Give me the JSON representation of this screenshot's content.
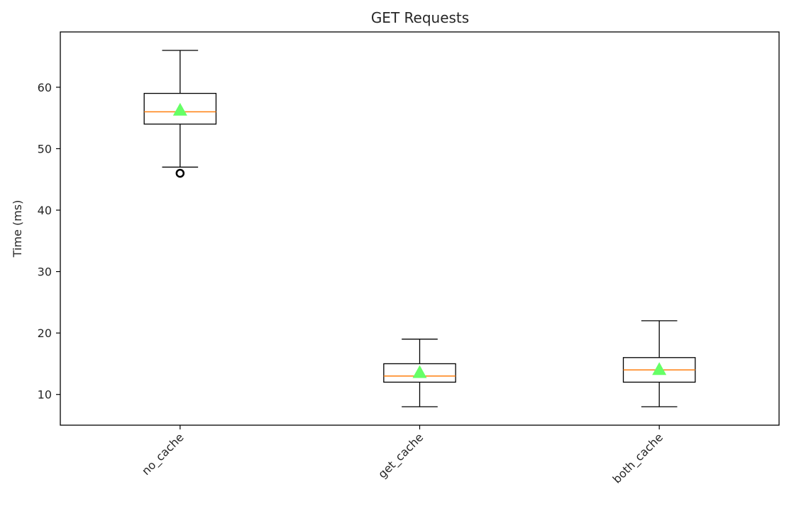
{
  "chart_data": {
    "type": "box",
    "title": "GET Requests",
    "xlabel": "",
    "ylabel": "Time (ms)",
    "ylim": [
      5,
      69
    ],
    "yticks": [
      10,
      20,
      30,
      40,
      50,
      60
    ],
    "categories": [
      "no_cache",
      "get_cache",
      "both_cache"
    ],
    "boxes": [
      {
        "category": "no_cache",
        "whisker_low": 47,
        "q1": 54,
        "median": 56,
        "q3": 59,
        "whisker_high": 66,
        "mean": 56.3,
        "outliers": [
          46
        ]
      },
      {
        "category": "get_cache",
        "whisker_low": 8,
        "q1": 12,
        "median": 13,
        "q3": 15,
        "whisker_high": 19,
        "mean": 13.6,
        "outliers": []
      },
      {
        "category": "both_cache",
        "whisker_low": 8,
        "q1": 12,
        "median": 14,
        "q3": 16,
        "whisker_high": 22,
        "mean": 14.1,
        "outliers": []
      }
    ],
    "grid": false,
    "colors": {
      "box": "#000000",
      "median": "#ff7f0e",
      "mean": "#66ff66",
      "outlier": "#000000"
    }
  }
}
